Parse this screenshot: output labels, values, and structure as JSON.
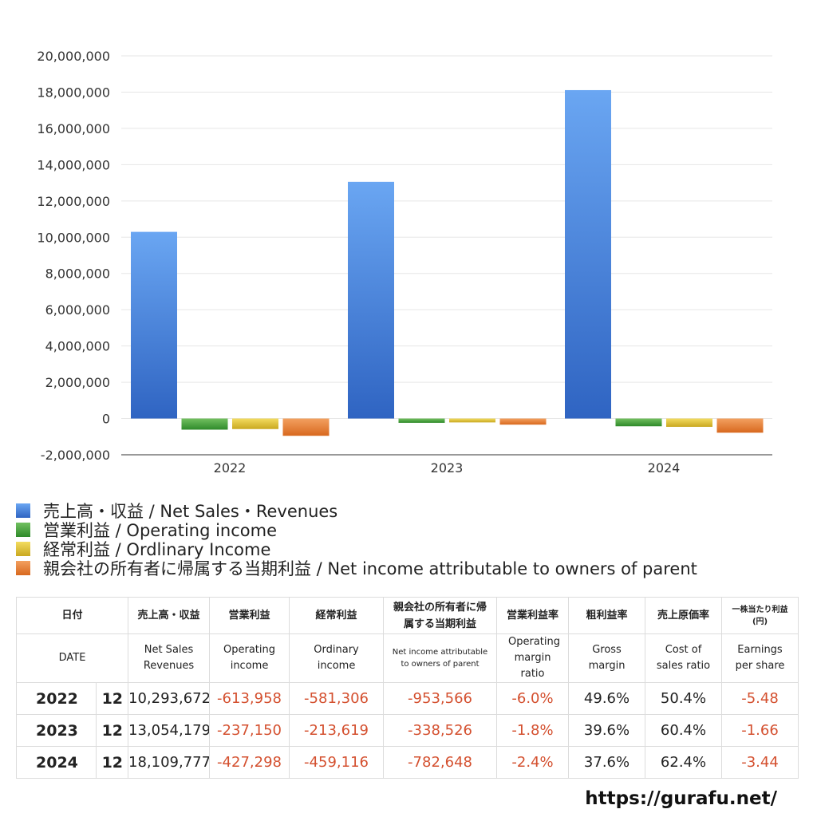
{
  "chart_data": {
    "type": "bar",
    "categories": [
      "2022",
      "2023",
      "2024"
    ],
    "ylim": [
      -2000000,
      20000000
    ],
    "yticks": [
      -2000000,
      0,
      2000000,
      4000000,
      6000000,
      8000000,
      10000000,
      12000000,
      14000000,
      16000000,
      18000000,
      20000000
    ],
    "grid": true,
    "legend_position": "bottom",
    "series": [
      {
        "name": "売上高・収益 / Net Sales・Revenues",
        "color": "#4a86e0",
        "values": [
          10293672,
          13054179,
          18109777
        ]
      },
      {
        "name": "営業利益 / Operating income",
        "color": "#4aa340",
        "values": [
          -613958,
          -237150,
          -427298
        ]
      },
      {
        "name": "経常利益 / Ordlinary Income",
        "color": "#e0c230",
        "values": [
          -581306,
          -213619,
          -459116
        ]
      },
      {
        "name": "親会社の所有者に帰属する当期利益 / Net income attributable to owners of parent",
        "color": "#e07a30",
        "values": [
          -953566,
          -338526,
          -782648
        ]
      }
    ]
  },
  "table": {
    "header_jp": [
      "日付",
      "売上高・収益",
      "営業利益",
      "経常利益",
      "親会社の所有者に帰属する当期利益",
      "営業利益率",
      "粗利益率",
      "売上原価率",
      "一株当たり利益(円)"
    ],
    "header_en": [
      "DATE",
      "Net Sales Revenues",
      "Operating income",
      "Ordinary income",
      "Net income attributable to owners of parent",
      "Operating margin ratio",
      "Gross margin",
      "Cost of sales ratio",
      "Earnings per share"
    ],
    "rows": [
      {
        "year": "2022",
        "month": "12",
        "values": [
          "10,293,672",
          "-613,958",
          "-581,306",
          "-953,566",
          "-6.0%",
          "49.6%",
          "50.4%",
          "-5.48"
        ]
      },
      {
        "year": "2023",
        "month": "12",
        "values": [
          "13,054,179",
          "-237,150",
          "-213,619",
          "-338,526",
          "-1.8%",
          "39.6%",
          "60.4%",
          "-1.66"
        ]
      },
      {
        "year": "2024",
        "month": "12",
        "values": [
          "18,109,777",
          "-427,298",
          "-459,116",
          "-782,648",
          "-2.4%",
          "37.6%",
          "62.4%",
          "-3.44"
        ]
      }
    ]
  },
  "footer": {
    "url": "https://gurafu.net/"
  }
}
